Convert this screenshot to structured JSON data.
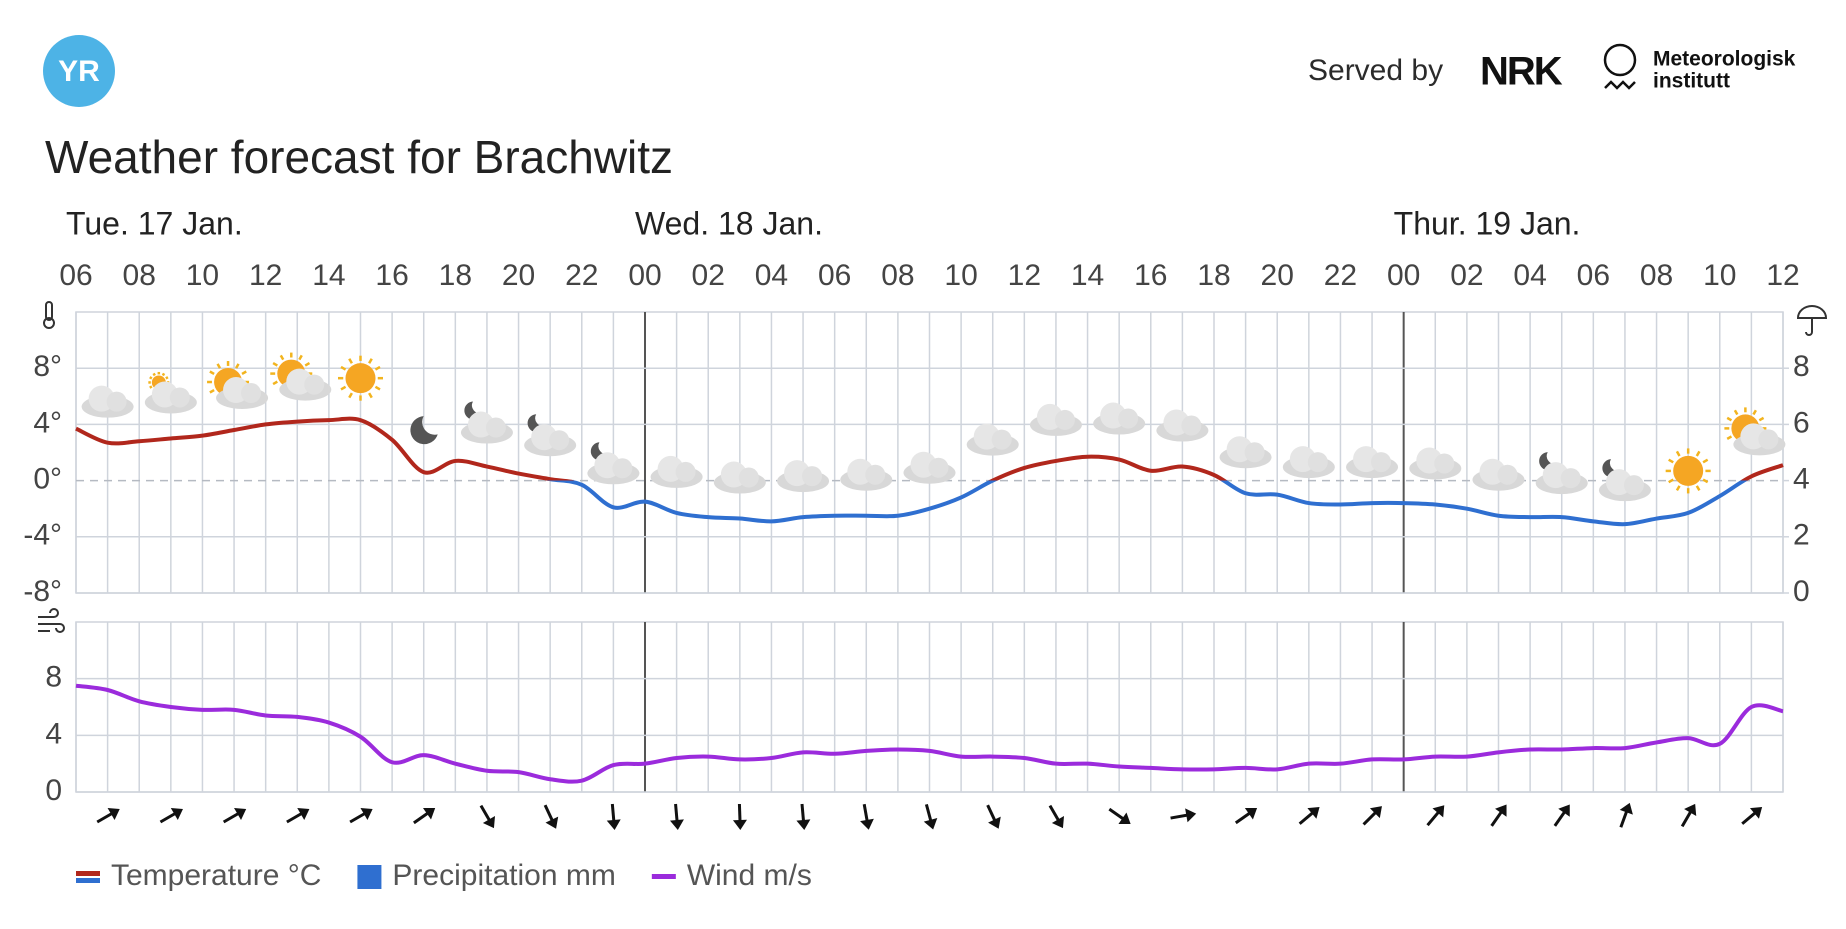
{
  "header": {
    "logo": "YR",
    "served_by": "Served by",
    "nrk": "NRK",
    "met": [
      "Meteorologisk",
      "institutt"
    ]
  },
  "chart_data": [
    {
      "type": "line",
      "title": "Weather forecast for Brachwitz",
      "days": [
        "Tue. 17 Jan.",
        "Wed. 18 Jan.",
        "Thur. 19 Jan."
      ],
      "categories": [
        "06",
        null,
        "08",
        null,
        "10",
        null,
        "12",
        null,
        "14",
        null,
        "16",
        null,
        "18",
        null,
        "20",
        null,
        "22",
        null,
        "00",
        null,
        "02",
        null,
        "04",
        null,
        "06",
        null,
        "08",
        null,
        "10",
        null,
        "12",
        null,
        "14",
        null,
        "16",
        null,
        "18",
        null,
        "20",
        null,
        "22",
        null,
        "00",
        null,
        "02",
        null,
        "04",
        null,
        "06",
        null,
        "08",
        null,
        "10",
        null,
        "12"
      ],
      "ylim": [
        -8,
        12
      ],
      "yticks": [
        {
          "value": -8,
          "label": "-8°"
        },
        {
          "value": -4,
          "label": "-4°"
        },
        {
          "value": 0,
          "label": "0°"
        },
        {
          "value": 4,
          "label": "4°"
        },
        {
          "value": 8,
          "label": "8°"
        }
      ],
      "y2lim": [
        0,
        10
      ],
      "y2ticks": [
        0,
        2,
        4,
        6,
        8
      ],
      "grid": true,
      "series": [
        {
          "name": "Temperature °C",
          "color": "#b1271c",
          "negative_color": "#2f6fd0",
          "values": [
            3.7,
            2.7,
            2.8,
            3.0,
            3.2,
            3.6,
            4.0,
            4.2,
            4.3,
            4.3,
            2.9,
            0.6,
            1.4,
            1.0,
            0.5,
            0.1,
            -0.3,
            -1.9,
            -1.5,
            -2.3,
            -2.6,
            -2.7,
            -2.9,
            -2.6,
            -2.5,
            -2.5,
            -2.5,
            -2.0,
            -1.2,
            0,
            0.9,
            1.4,
            1.7,
            1.5,
            0.7,
            1.0,
            0.4,
            -0.9,
            -1.0,
            -1.6,
            -1.7,
            -1.6,
            -1.6,
            -1.7,
            -2.0,
            -2.5,
            -2.6,
            -2.6,
            -2.9,
            -3.1,
            -2.7,
            -2.3,
            -1.1,
            0.3,
            1.1
          ]
        },
        {
          "name": "Precipitation mm",
          "color": "#2f6fd0",
          "axis": "y2",
          "values": [
            0,
            0,
            0,
            0,
            0,
            0,
            0,
            0,
            0,
            0,
            0,
            0,
            0,
            0,
            0,
            0,
            0,
            0,
            0,
            0,
            0,
            0,
            0,
            0,
            0,
            0,
            0,
            0,
            0,
            0,
            0,
            0,
            0,
            0,
            0,
            0,
            0,
            0,
            0,
            0,
            0,
            0,
            0,
            0,
            0,
            0,
            0,
            0,
            0,
            0,
            0,
            0,
            0,
            0,
            0
          ]
        }
      ]
    },
    {
      "type": "line",
      "ylim": [
        0,
        12
      ],
      "yticks": [
        0,
        4,
        8
      ],
      "grid": true,
      "series": [
        {
          "name": "Wind m/s",
          "color": "#9b2bdc",
          "values": [
            7.5,
            7.2,
            6.4,
            6.0,
            5.8,
            5.8,
            5.4,
            5.3,
            4.9,
            3.9,
            2.1,
            2.6,
            2.0,
            1.5,
            1.4,
            0.9,
            0.8,
            1.9,
            2.0,
            2.4,
            2.5,
            2.3,
            2.4,
            2.8,
            2.7,
            2.9,
            3.0,
            2.9,
            2.5,
            2.5,
            2.4,
            2.0,
            2.0,
            1.8,
            1.7,
            1.6,
            1.6,
            1.7,
            1.6,
            2.0,
            2.0,
            2.3,
            2.3,
            2.5,
            2.5,
            2.8,
            3.0,
            3.0,
            3.1,
            3.1,
            3.5,
            3.8,
            3.4,
            6.0,
            5.7
          ],
          "directions": [
            60,
            60,
            60,
            60,
            60,
            55,
            150,
            155,
            175,
            175,
            178,
            175,
            170,
            165,
            155,
            150,
            125,
            80,
            55,
            50,
            45,
            40,
            35,
            35,
            20,
            30,
            50
          ]
        }
      ]
    }
  ]
}
